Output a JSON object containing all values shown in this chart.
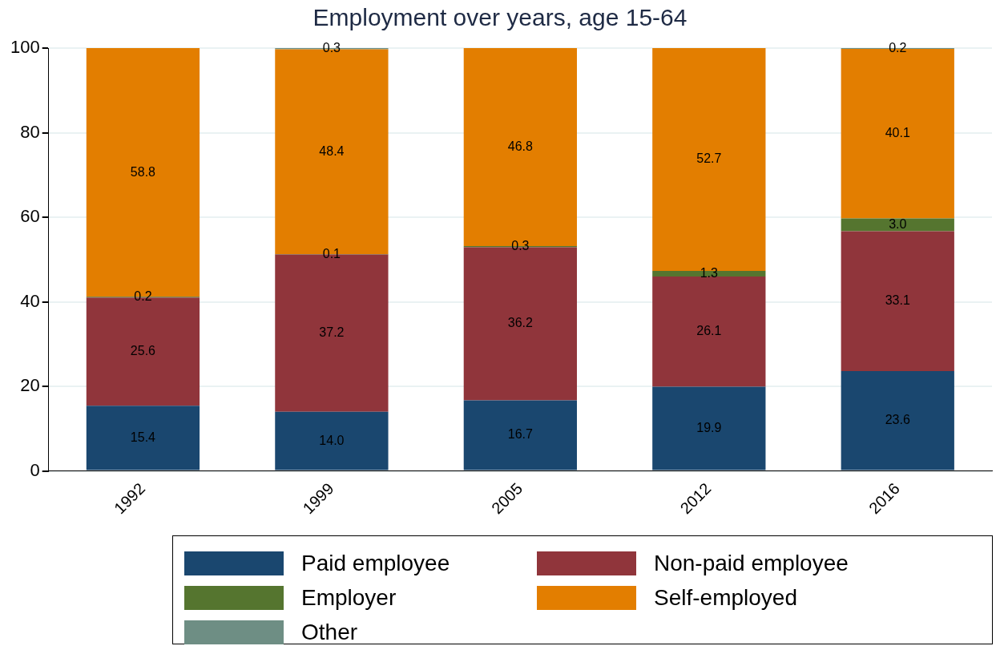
{
  "chart_data": {
    "type": "bar",
    "title": "Employment over years, age 15-64",
    "stacked": true,
    "categories": [
      "1992",
      "1999",
      "2005",
      "2012",
      "2016"
    ],
    "series": [
      {
        "name": "Paid employee",
        "color": "#1a476f",
        "values": [
          15.4,
          14.0,
          16.7,
          19.9,
          23.6
        ],
        "value_labels": [
          "15.4",
          "14.0",
          "16.7",
          "19.9",
          "23.6"
        ]
      },
      {
        "name": "Non-paid employee",
        "color": "#90353b",
        "values": [
          25.6,
          37.2,
          36.2,
          26.1,
          33.1
        ],
        "value_labels": [
          "25.6",
          "37.2",
          "36.2",
          "26.1",
          "33.1"
        ]
      },
      {
        "name": "Employer",
        "color": "#55752f",
        "values": [
          0.2,
          0.1,
          0.3,
          1.3,
          3.0
        ],
        "value_labels": [
          "0.2",
          "0.1",
          "0.3",
          "1.3",
          "3.0"
        ]
      },
      {
        "name": "Self-employed",
        "color": "#e37e00",
        "values": [
          58.8,
          48.4,
          46.8,
          52.7,
          40.1
        ],
        "value_labels": [
          "58.8",
          "48.4",
          "46.8",
          "52.7",
          "40.1"
        ]
      },
      {
        "name": "Other",
        "color": "#6e8e84",
        "values": [
          null,
          0.3,
          null,
          null,
          0.2
        ],
        "value_labels": [
          null,
          "0.3",
          null,
          null,
          "0.2"
        ]
      }
    ],
    "ylim": [
      0,
      100
    ],
    "yticks": [
      0,
      20,
      40,
      60,
      80,
      100
    ],
    "grid": "y",
    "legend": "bottom"
  }
}
